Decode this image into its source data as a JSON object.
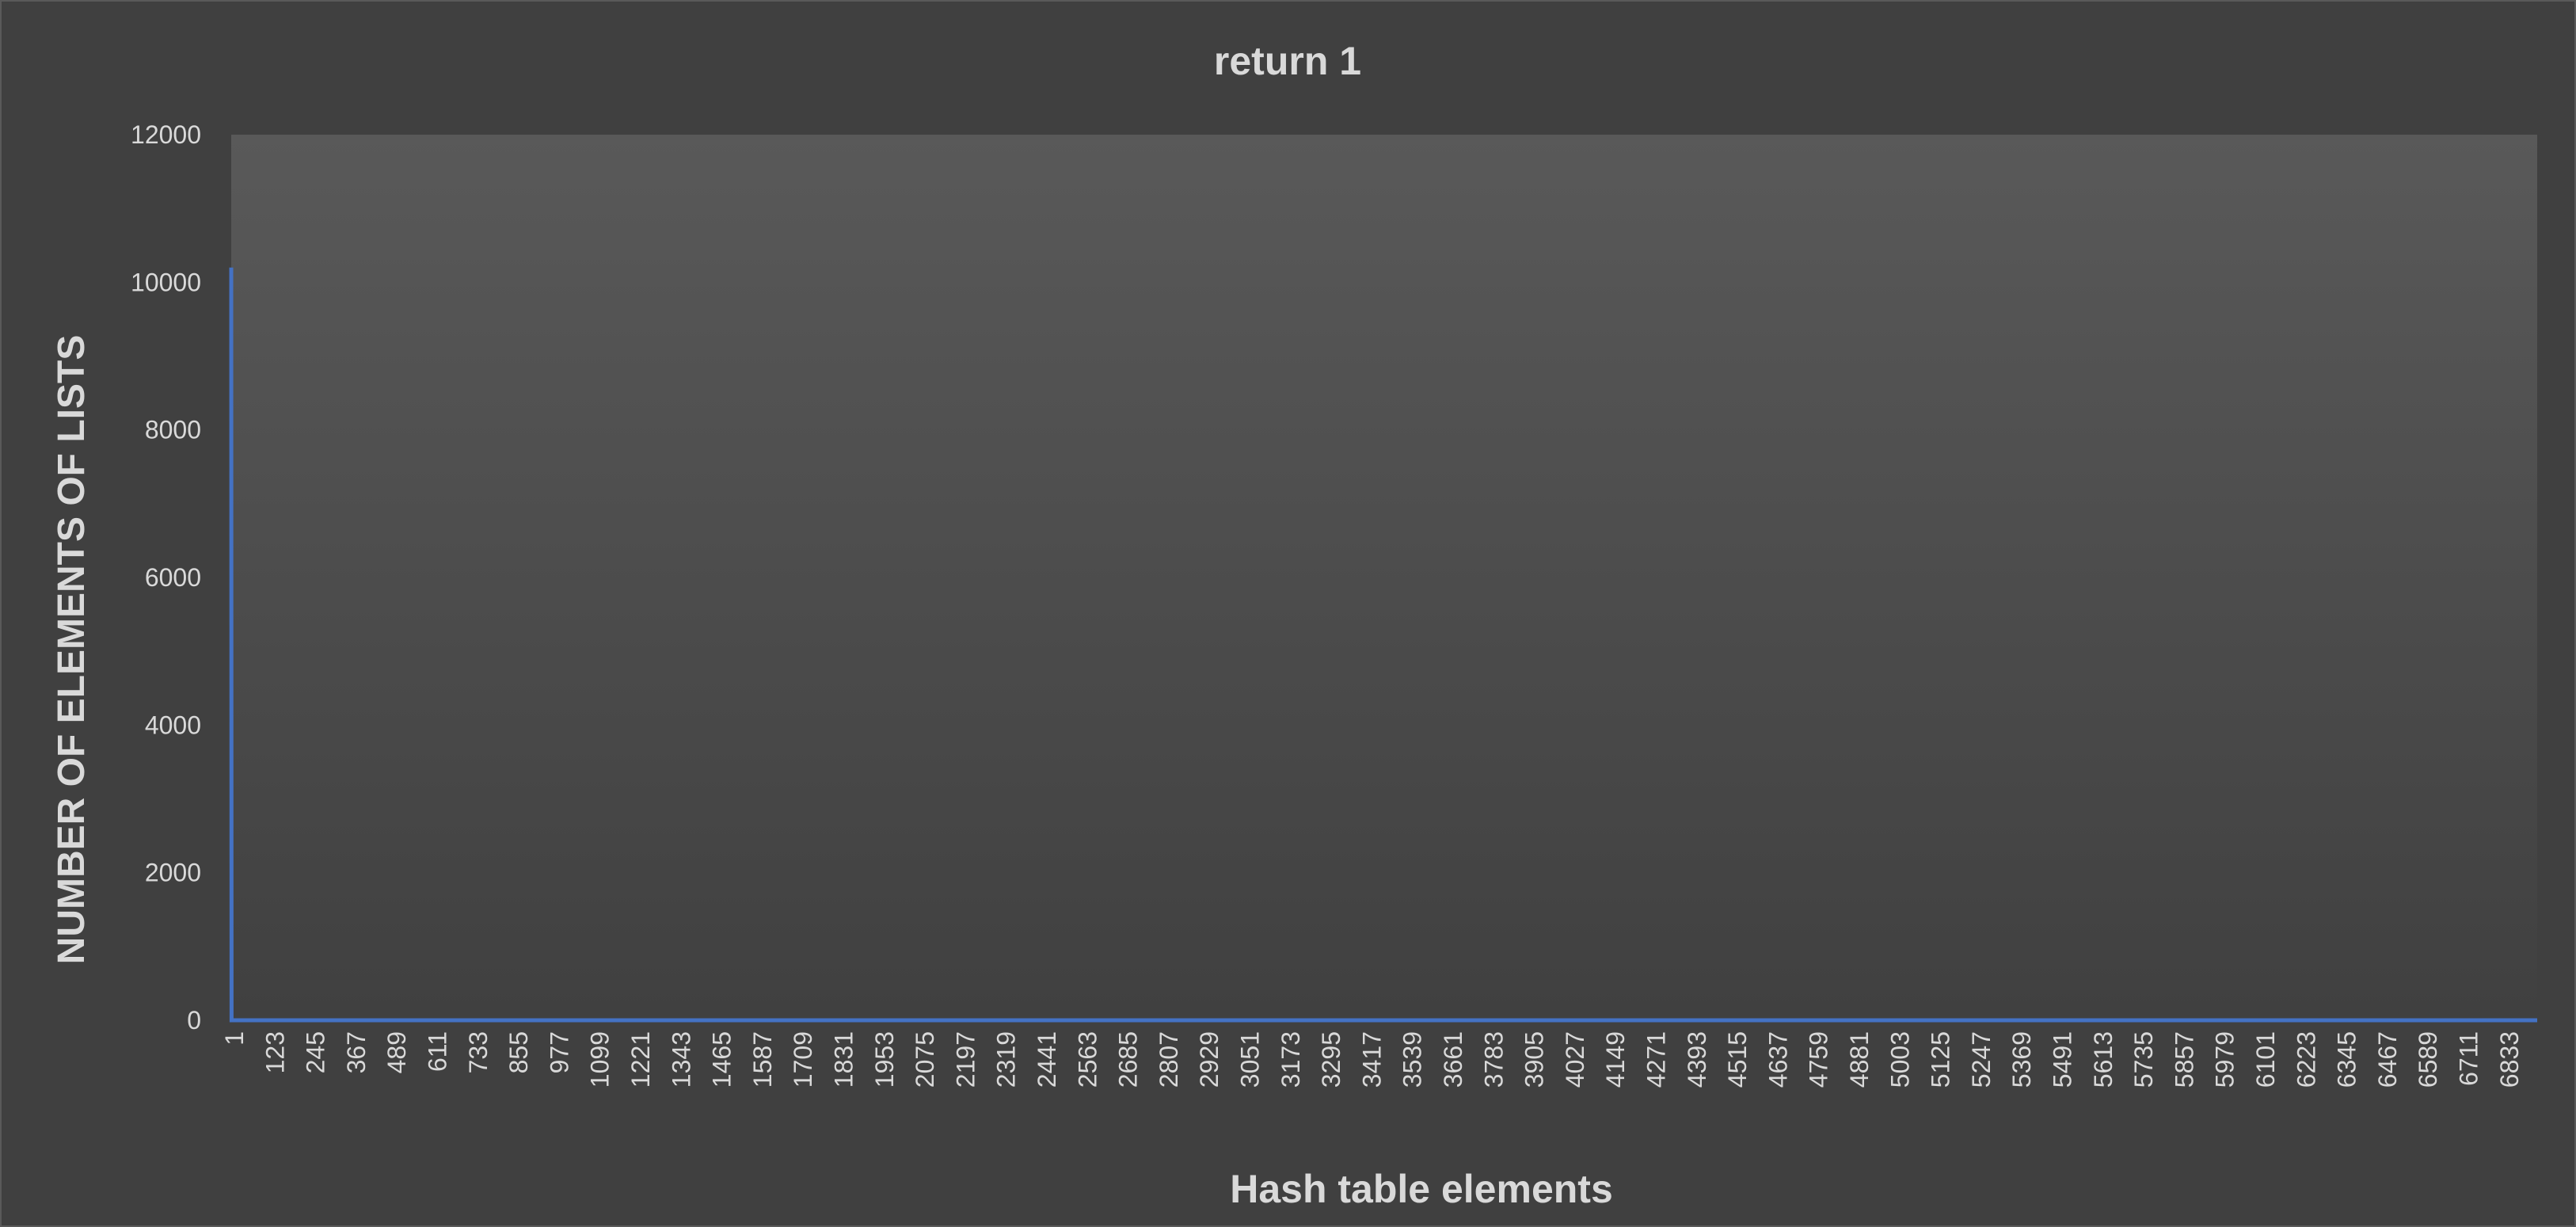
{
  "chart_data": {
    "type": "line",
    "title": "return 1",
    "xlabel": "Hash table elements",
    "ylabel": "NUMBER OF ELEMENTS OF LISTS",
    "ylim": [
      0,
      12000
    ],
    "y_ticks": [
      0,
      2000,
      4000,
      6000,
      8000,
      10000,
      12000
    ],
    "x_tick_labels": [
      "1",
      "123",
      "245",
      "367",
      "489",
      "611",
      "733",
      "855",
      "977",
      "1099",
      "1221",
      "1343",
      "1465",
      "1587",
      "1709",
      "1831",
      "1953",
      "2075",
      "2197",
      "2319",
      "2441",
      "2563",
      "2685",
      "2807",
      "2929",
      "3051",
      "3173",
      "3295",
      "3417",
      "3539",
      "3661",
      "3783",
      "3905",
      "4027",
      "4149",
      "4271",
      "4393",
      "4515",
      "4637",
      "4759",
      "4881",
      "5003",
      "5125",
      "5247",
      "5369",
      "5491",
      "5613",
      "5735",
      "5857",
      "5979",
      "6101",
      "6223",
      "6345",
      "6467",
      "6589",
      "6711",
      "6833"
    ],
    "x_range": [
      1,
      6950
    ],
    "series": [
      {
        "values": [
          [
            1,
            10200
          ],
          [
            2,
            0
          ],
          [
            6950,
            0
          ]
        ]
      }
    ],
    "grid": false,
    "legend": "none",
    "colors": {
      "background": "#404040",
      "plot_top": "#595959",
      "plot_bottom": "#404040",
      "series": "#4472c4",
      "text": "#d9d9d9"
    }
  }
}
